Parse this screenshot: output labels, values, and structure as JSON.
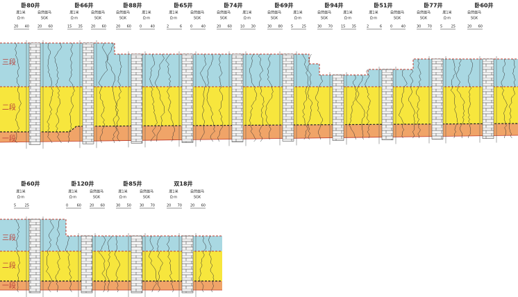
{
  "rows": [
    {
      "layers": [
        "三段",
        "二段",
        "一段"
      ],
      "wells": [
        {
          "name": "卧80井",
          "cells": [
            {
              "label": "底1米",
              "unit": "Ω·m",
              "scale": [
                20,
                40
              ]
            },
            {
              "label": "自然伽马",
              "unit": "SGK",
              "scale": [
                20,
                60
              ]
            }
          ]
        },
        {
          "name": "卧66井",
          "cells": [
            {
              "label": "底1米",
              "unit": "Ω·m",
              "scale": [
                15,
                35
              ]
            },
            {
              "label": "自然伽马",
              "unit": "SGK",
              "scale": [
                20,
                60
              ]
            }
          ]
        },
        {
          "name": "卧88井",
          "cells": [
            {
              "label": "自然伽马",
              "unit": "SGK",
              "scale": [
                20,
                60
              ]
            },
            {
              "label": "底1米",
              "unit": "Ω·m",
              "scale": [
                0,
                40
              ]
            }
          ]
        },
        {
          "name": "卧65井",
          "cells": [
            {
              "label": "底1米",
              "unit": "Ω·m",
              "scale": [
                2,
                6
              ]
            },
            {
              "label": "自然伽马",
              "unit": "SGK",
              "scale": [
                0,
                40
              ]
            }
          ]
        },
        {
          "name": "卧74井",
          "cells": [
            {
              "label": "自然伽马",
              "unit": "SGK",
              "scale": [
                20,
                60
              ]
            },
            {
              "label": "底1米",
              "unit": "Ω·m",
              "scale": [
                10,
                30
              ]
            }
          ]
        },
        {
          "name": "卧69井",
          "cells": [
            {
              "label": "自然伽马",
              "unit": "SGK",
              "scale": [
                30,
                80
              ]
            },
            {
              "label": "底1米",
              "unit": "Ω·m",
              "scale": [
                5,
                25
              ]
            }
          ]
        },
        {
          "name": "卧94井",
          "cells": [
            {
              "label": "自然伽马",
              "unit": "SGK",
              "scale": [
                30,
                70
              ]
            },
            {
              "label": "底1米",
              "unit": "Ω·m",
              "scale": [
                15,
                35
              ]
            }
          ]
        },
        {
          "name": "卧51井",
          "cells": [
            {
              "label": "底1米",
              "unit": "Ω·m",
              "scale": [
                2,
                6
              ]
            },
            {
              "label": "自然伽马",
              "unit": "SGK",
              "scale": [
                0,
                40
              ]
            }
          ]
        },
        {
          "name": "卧77井",
          "cells": [
            {
              "label": "自然伽马",
              "unit": "SGK",
              "scale": [
                30,
                70
              ]
            },
            {
              "label": "底1米",
              "unit": "Ω·m",
              "scale": [
                5,
                25
              ]
            }
          ]
        },
        {
          "name": "卧60井",
          "cells": [
            {
              "label": "自然伽马",
              "unit": "SGK",
              "scale": [
                20,
                60
              ]
            }
          ]
        }
      ]
    },
    {
      "layers": [
        "三段",
        "二段",
        "一段"
      ],
      "wells": [
        {
          "name": "卧60井",
          "cells": [
            {
              "label": "底1米",
              "unit": "Ω·m",
              "scale": [
                5,
                25
              ]
            }
          ]
        },
        {
          "name": "卧120井",
          "cells": [
            {
              "label": "底1米",
              "unit": "Ω·m",
              "scale": [
                0,
                60
              ]
            },
            {
              "label": "自然伽马",
              "unit": "SGK",
              "scale": [
                20,
                60
              ]
            }
          ]
        },
        {
          "name": "卧85井",
          "cells": [
            {
              "label": "底1米",
              "unit": "Ω·m",
              "scale": [
                30,
                50
              ]
            },
            {
              "label": "自然伽马",
              "unit": "SGK",
              "scale": [
                30,
                70
              ]
            }
          ]
        },
        {
          "name": "双18井",
          "cells": [
            {
              "label": "底1米",
              "unit": "Ω·m",
              "scale": [
                20,
                70
              ]
            },
            {
              "label": "自然伽马",
              "unit": "SGK",
              "scale": [
                20,
                60
              ]
            }
          ]
        }
      ]
    }
  ]
}
